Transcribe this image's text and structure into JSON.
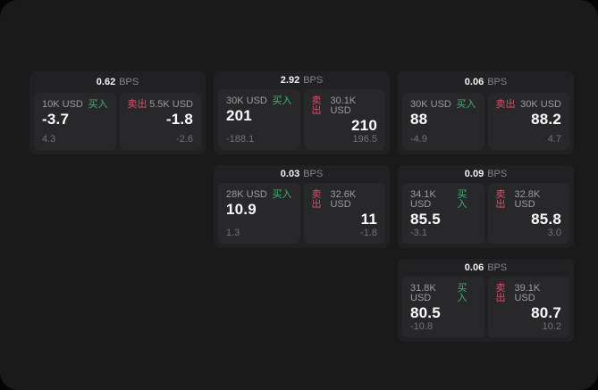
{
  "window": {
    "background": "#1a1a1b",
    "outer_background": "#050505"
  },
  "colors": {
    "buy": "#3cb56f",
    "sell": "#d94f66",
    "card_bg": "#212123",
    "panel_bg": "#28282b",
    "price_text": "#fbfbfb",
    "muted_text": "#9d9da1",
    "sub_text": "#737378"
  },
  "labels": {
    "buy": "买入",
    "sell": "卖出",
    "bps": "BPS"
  },
  "cards": [
    {
      "row": 1,
      "col": 1,
      "bps": "0.62",
      "buy": {
        "size": "10K USD",
        "price": "-3.7",
        "sub": "4.3"
      },
      "sell": {
        "size": "5.5K USD",
        "price": "-1.8",
        "sub": "-2.6"
      }
    },
    {
      "row": 1,
      "col": 2,
      "bps": "2.92",
      "buy": {
        "size": "30K USD",
        "price": "201",
        "sub": "-188.1"
      },
      "sell": {
        "size": "30.1K USD",
        "price": "210",
        "sub": "196.5"
      }
    },
    {
      "row": 1,
      "col": 3,
      "bps": "0.06",
      "buy": {
        "size": "30K USD",
        "price": "88",
        "sub": "-4.9"
      },
      "sell": {
        "size": "30K USD",
        "price": "88.2",
        "sub": "4.7"
      }
    },
    {
      "row": 2,
      "col": 2,
      "bps": "0.03",
      "buy": {
        "size": "28K USD",
        "price": "10.9",
        "sub": "1.3"
      },
      "sell": {
        "size": "32.6K USD",
        "price": "11",
        "sub": "-1.8"
      }
    },
    {
      "row": 2,
      "col": 3,
      "bps": "0.09",
      "buy": {
        "size": "34.1K USD",
        "price": "85.5",
        "sub": "-3.1"
      },
      "sell": {
        "size": "32.8K USD",
        "price": "85.8",
        "sub": "3.0"
      }
    },
    {
      "row": 3,
      "col": 3,
      "bps": "0.06",
      "buy": {
        "size": "31.8K USD",
        "price": "80.5",
        "sub": "-10.8"
      },
      "sell": {
        "size": "39.1K USD",
        "price": "80.7",
        "sub": "10.2"
      }
    }
  ]
}
